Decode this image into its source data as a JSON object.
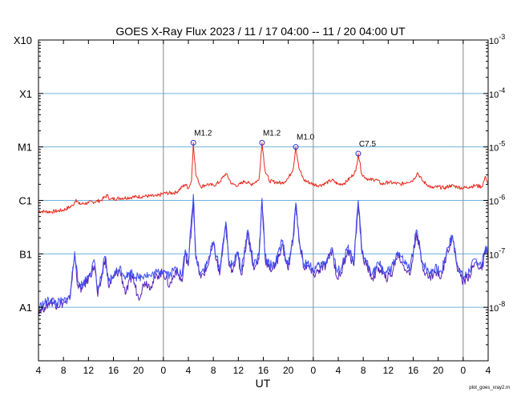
{
  "chart_data": {
    "type": "line",
    "title": "GOES X-Ray Flux   2023 / 11 / 17   04:00 -- 11 / 20   04:00   UT",
    "xlabel": "UT",
    "x_range_hours": [
      0,
      72
    ],
    "x_ticks": [
      {
        "h": 0,
        "label": "4"
      },
      {
        "h": 4,
        "label": "8"
      },
      {
        "h": 8,
        "label": "12"
      },
      {
        "h": 12,
        "label": "16"
      },
      {
        "h": 16,
        "label": "20"
      },
      {
        "h": 20,
        "label": "0"
      },
      {
        "h": 24,
        "label": "4"
      },
      {
        "h": 28,
        "label": "8"
      },
      {
        "h": 32,
        "label": "12"
      },
      {
        "h": 36,
        "label": "16"
      },
      {
        "h": 40,
        "label": "20"
      },
      {
        "h": 44,
        "label": "0"
      },
      {
        "h": 48,
        "label": "4"
      },
      {
        "h": 52,
        "label": "8"
      },
      {
        "h": 56,
        "label": "12"
      },
      {
        "h": 60,
        "label": "16"
      },
      {
        "h": 64,
        "label": "20"
      },
      {
        "h": 68,
        "label": "0"
      },
      {
        "h": 72,
        "label": "4"
      }
    ],
    "day_boundaries_hours": [
      20,
      44,
      68
    ],
    "y_scale": "log",
    "y_range": [
      1e-09,
      0.001
    ],
    "left_ticks": [
      {
        "value": 1e-08,
        "label": "A1"
      },
      {
        "value": 1e-07,
        "label": "B1"
      },
      {
        "value": 1e-06,
        "label": "C1"
      },
      {
        "value": 1e-05,
        "label": "M1"
      },
      {
        "value": 0.0001,
        "label": "X1"
      },
      {
        "value": 0.001,
        "label": "X10"
      }
    ],
    "right_ticks": [
      {
        "value": 1e-08,
        "label": "10",
        "exp": "-8"
      },
      {
        "value": 1e-07,
        "label": "10",
        "exp": "-7"
      },
      {
        "value": 1e-06,
        "label": "10",
        "exp": "-6"
      },
      {
        "value": 1e-05,
        "label": "10",
        "exp": "-5"
      },
      {
        "value": 0.0001,
        "label": "10",
        "exp": "-4"
      },
      {
        "value": 0.001,
        "label": "10",
        "exp": "-3"
      }
    ],
    "flares": [
      {
        "h": 24.8,
        "value": 1.2e-05,
        "label": "M1.2"
      },
      {
        "h": 35.8,
        "value": 1.2e-05,
        "label": "M1.2"
      },
      {
        "h": 41.2,
        "value": 1e-05,
        "label": "M1.0"
      },
      {
        "h": 51.2,
        "value": 7.5e-06,
        "label": "C7.5"
      }
    ],
    "series": [
      {
        "color": "#e8281c",
        "points": [
          [
            0,
            6.3e-07
          ],
          [
            2,
            6.1e-07
          ],
          [
            4,
            6.6e-07
          ],
          [
            5.5,
            8e-07
          ],
          [
            6,
            1.05e-06
          ],
          [
            6.5,
            8.5e-07
          ],
          [
            8,
            9e-07
          ],
          [
            10,
            1e-06
          ],
          [
            11,
            1.25e-06
          ],
          [
            11.5,
            1.05e-06
          ],
          [
            13,
            1.1e-06
          ],
          [
            15,
            1.15e-06
          ],
          [
            17,
            1.2e-06
          ],
          [
            19,
            1.2e-06
          ],
          [
            20,
            1.35e-06
          ],
          [
            22,
            1.4e-06
          ],
          [
            23.5,
            2e-06
          ],
          [
            24,
            1.7e-06
          ],
          [
            24.5,
            2.3e-06
          ],
          [
            24.8,
            1.2e-05
          ],
          [
            25.2,
            3e-06
          ],
          [
            26,
            1.8e-06
          ],
          [
            27,
            2e-06
          ],
          [
            28,
            1.9e-06
          ],
          [
            29,
            2.2e-06
          ],
          [
            30,
            3.2e-06
          ],
          [
            31,
            2e-06
          ],
          [
            32,
            1.9e-06
          ],
          [
            33,
            2.3e-06
          ],
          [
            34,
            2e-06
          ],
          [
            35.3,
            2.4e-06
          ],
          [
            35.8,
            1.2e-05
          ],
          [
            36.3,
            3.5e-06
          ],
          [
            37,
            2.3e-06
          ],
          [
            38,
            2.2e-06
          ],
          [
            39,
            2.1e-06
          ],
          [
            40,
            2.6e-06
          ],
          [
            40.8,
            4e-06
          ],
          [
            41.2,
            1e-05
          ],
          [
            41.7,
            4e-06
          ],
          [
            42.5,
            2.4e-06
          ],
          [
            44,
            2e-06
          ],
          [
            45,
            1.9e-06
          ],
          [
            46,
            2.1e-06
          ],
          [
            47,
            2.4e-06
          ],
          [
            48,
            2e-06
          ],
          [
            49,
            2.1e-06
          ],
          [
            50,
            2.7e-06
          ],
          [
            50.8,
            3.5e-06
          ],
          [
            51.2,
            7.5e-06
          ],
          [
            51.8,
            3e-06
          ],
          [
            53,
            2.4e-06
          ],
          [
            54,
            2.5e-06
          ],
          [
            55,
            2e-06
          ],
          [
            56,
            2.2e-06
          ],
          [
            57,
            2.1e-06
          ],
          [
            58,
            2e-06
          ],
          [
            59,
            2.2e-06
          ],
          [
            60,
            2.4e-06
          ],
          [
            60.7,
            3.3e-06
          ],
          [
            61.5,
            2.3e-06
          ],
          [
            63,
            1.7e-06
          ],
          [
            64,
            1.8e-06
          ],
          [
            65,
            1.7e-06
          ],
          [
            66,
            1.9e-06
          ],
          [
            67,
            1.8e-06
          ],
          [
            68,
            1.7e-06
          ],
          [
            69,
            1.8e-06
          ],
          [
            70,
            1.9e-06
          ],
          [
            71,
            1.8e-06
          ],
          [
            71.6,
            2.8e-06
          ],
          [
            72,
            2e-06
          ]
        ]
      },
      {
        "color": "#5b23b8",
        "points": [
          [
            0,
            9e-09
          ],
          [
            1,
            1e-08
          ],
          [
            2,
            1.3e-08
          ],
          [
            3,
            1.1e-08
          ],
          [
            4,
            1.2e-08
          ],
          [
            5,
            1.4e-08
          ],
          [
            5.8,
            1e-07
          ],
          [
            6.3,
            2.5e-08
          ],
          [
            7,
            2.2e-08
          ],
          [
            8,
            3.5e-08
          ],
          [
            9,
            6e-08
          ],
          [
            9.5,
            1.6e-08
          ],
          [
            10,
            3e-08
          ],
          [
            10.7,
            8.5e-08
          ],
          [
            11.2,
            2.5e-08
          ],
          [
            12,
            3.5e-08
          ],
          [
            13,
            5e-08
          ],
          [
            14,
            1.8e-08
          ],
          [
            15,
            4e-08
          ],
          [
            16,
            1.5e-08
          ],
          [
            17,
            3e-08
          ],
          [
            18,
            2.5e-08
          ],
          [
            19,
            4e-08
          ],
          [
            20,
            4.5e-08
          ],
          [
            21,
            2.5e-08
          ],
          [
            22,
            5e-08
          ],
          [
            23,
            3e-08
          ],
          [
            23.5,
            1e-07
          ],
          [
            24,
            6e-08
          ],
          [
            24.8,
            1e-06
          ],
          [
            25.2,
            8e-08
          ],
          [
            26,
            3.5e-08
          ],
          [
            27,
            5.5e-08
          ],
          [
            28,
            1.5e-07
          ],
          [
            29,
            4e-08
          ],
          [
            30,
            3.5e-07
          ],
          [
            30.5,
            6e-08
          ],
          [
            31,
            5e-08
          ],
          [
            31.8,
            1e-07
          ],
          [
            32.5,
            4e-08
          ],
          [
            33.5,
            2.5e-07
          ],
          [
            34.5,
            5e-08
          ],
          [
            35.3,
            8e-08
          ],
          [
            35.8,
            1e-06
          ],
          [
            36.3,
            8e-08
          ],
          [
            37,
            5e-08
          ],
          [
            38,
            6e-08
          ],
          [
            39,
            1.5e-07
          ],
          [
            40,
            5e-08
          ],
          [
            40.8,
            2e-07
          ],
          [
            41.2,
            8e-07
          ],
          [
            41.8,
            1.5e-07
          ],
          [
            42.5,
            5.5e-08
          ],
          [
            43,
            6e-08
          ],
          [
            44,
            4e-08
          ],
          [
            45,
            5e-08
          ],
          [
            46,
            6e-08
          ],
          [
            47,
            1.2e-07
          ],
          [
            47.8,
            3.5e-08
          ],
          [
            48.5,
            4.5e-08
          ],
          [
            49.5,
            1.2e-07
          ],
          [
            50.5,
            6e-08
          ],
          [
            51.2,
            9e-07
          ],
          [
            51.8,
            1e-07
          ],
          [
            52.5,
            6e-08
          ],
          [
            53.5,
            3.5e-08
          ],
          [
            54.5,
            5.5e-08
          ],
          [
            55.5,
            3.5e-08
          ],
          [
            56.5,
            4e-08
          ],
          [
            57.5,
            1e-07
          ],
          [
            58.5,
            6e-08
          ],
          [
            59.5,
            4e-08
          ],
          [
            60.5,
            2.5e-07
          ],
          [
            61.5,
            6e-08
          ],
          [
            62.5,
            3.5e-08
          ],
          [
            63.5,
            4.5e-08
          ],
          [
            64.5,
            3.8e-08
          ],
          [
            65.5,
            1.2e-07
          ],
          [
            66.3,
            2e-07
          ],
          [
            67,
            6e-08
          ],
          [
            68,
            3e-08
          ],
          [
            69,
            4e-08
          ],
          [
            70,
            7e-08
          ],
          [
            71,
            5e-08
          ],
          [
            71.6,
            1.2e-07
          ],
          [
            72,
            8e-08
          ]
        ]
      },
      {
        "color": "#3c4ff2",
        "points": [
          [
            0,
            1e-08
          ],
          [
            1,
            1.2e-08
          ],
          [
            2,
            1.4e-08
          ],
          [
            3,
            1.2e-08
          ],
          [
            4,
            1.3e-08
          ],
          [
            5,
            1.5e-08
          ],
          [
            5.8,
            1.1e-07
          ],
          [
            6.3,
            3e-08
          ],
          [
            7,
            2.6e-08
          ],
          [
            8,
            4e-08
          ],
          [
            9,
            7e-08
          ],
          [
            9.5,
            2e-08
          ],
          [
            10,
            3.5e-08
          ],
          [
            10.7,
            9e-08
          ],
          [
            11.2,
            3e-08
          ],
          [
            12,
            4e-08
          ],
          [
            13,
            5.5e-08
          ],
          [
            14,
            3.8e-08
          ],
          [
            15,
            4.5e-08
          ],
          [
            16,
            3.5e-08
          ],
          [
            17,
            4.2e-08
          ],
          [
            18,
            3.8e-08
          ],
          [
            19,
            4.5e-08
          ],
          [
            20,
            5e-08
          ],
          [
            21,
            4e-08
          ],
          [
            22,
            5.5e-08
          ],
          [
            23,
            4e-08
          ],
          [
            23.5,
            1.2e-07
          ],
          [
            24,
            7e-08
          ],
          [
            24.8,
            1.3e-06
          ],
          [
            25.2,
            9e-08
          ],
          [
            26,
            4.5e-08
          ],
          [
            27,
            6.5e-08
          ],
          [
            28,
            1.7e-07
          ],
          [
            29,
            5e-08
          ],
          [
            30,
            4e-07
          ],
          [
            30.5,
            7e-08
          ],
          [
            31,
            6e-08
          ],
          [
            31.8,
            1.1e-07
          ],
          [
            32.5,
            5e-08
          ],
          [
            33.5,
            2.8e-07
          ],
          [
            34.5,
            6e-08
          ],
          [
            35.3,
            9e-08
          ],
          [
            35.8,
            1.1e-06
          ],
          [
            36.3,
            9e-08
          ],
          [
            37,
            6e-08
          ],
          [
            38,
            7e-08
          ],
          [
            39,
            1.7e-07
          ],
          [
            40,
            6e-08
          ],
          [
            40.8,
            2.2e-07
          ],
          [
            41.2,
            9e-07
          ],
          [
            41.8,
            1.7e-07
          ],
          [
            42.5,
            6.5e-08
          ],
          [
            43,
            7e-08
          ],
          [
            44,
            5e-08
          ],
          [
            45,
            6e-08
          ],
          [
            46,
            7e-08
          ],
          [
            47,
            1.3e-07
          ],
          [
            47.8,
            4.5e-08
          ],
          [
            48.5,
            5.5e-08
          ],
          [
            49.5,
            1.3e-07
          ],
          [
            50.5,
            7e-08
          ],
          [
            51.2,
            1e-06
          ],
          [
            51.8,
            1.1e-07
          ],
          [
            52.5,
            7e-08
          ],
          [
            53.5,
            4.5e-08
          ],
          [
            54.5,
            6.5e-08
          ],
          [
            55.5,
            4.5e-08
          ],
          [
            56.5,
            5e-08
          ],
          [
            57.5,
            1.1e-07
          ],
          [
            58.5,
            7e-08
          ],
          [
            59.5,
            5e-08
          ],
          [
            60.5,
            2.8e-07
          ],
          [
            61.5,
            7e-08
          ],
          [
            62.5,
            4.5e-08
          ],
          [
            63.5,
            5.5e-08
          ],
          [
            64.5,
            4.5e-08
          ],
          [
            65.5,
            1.3e-07
          ],
          [
            66.3,
            2.2e-07
          ],
          [
            67,
            7e-08
          ],
          [
            68,
            3.5e-08
          ],
          [
            69,
            5e-08
          ],
          [
            70,
            8e-08
          ],
          [
            71,
            6e-08
          ],
          [
            71.6,
            1.4e-07
          ],
          [
            72,
            9e-08
          ]
        ]
      }
    ]
  },
  "footer_note": "plot_goes_xray2.m"
}
